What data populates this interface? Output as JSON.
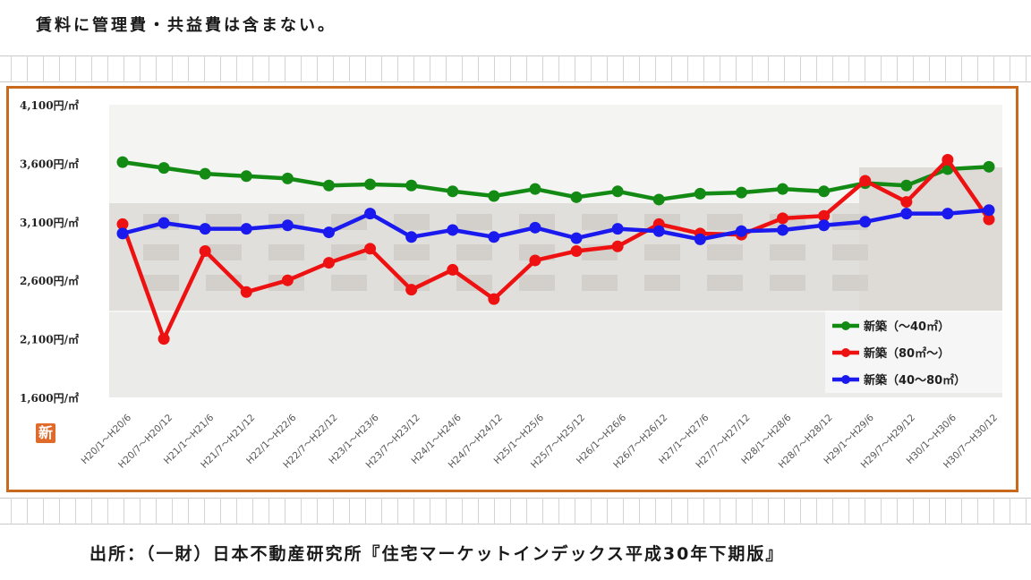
{
  "note": "賃料に管理費・共益費は含まない。",
  "source": "出所：（一財）日本不動産研究所『住宅マーケットインデックス平成30年下期版』",
  "logo_text": "新",
  "colors": {
    "frame": "#c8691e",
    "green": "#138a13",
    "red": "#ee1111",
    "blue": "#1a1aee"
  },
  "chart_data": {
    "type": "line",
    "title": "",
    "xlabel": "",
    "ylabel": "",
    "ylim": [
      1600,
      4100
    ],
    "yticks": [
      1600,
      2100,
      2600,
      3100,
      3600,
      4100
    ],
    "ytick_labels": [
      "1,600円/㎡",
      "2,100円/㎡",
      "2,600円/㎡",
      "3,100円/㎡",
      "3,600円/㎡",
      "4,100円/㎡"
    ],
    "legend_position": "bottom-right",
    "categories": [
      "H20/1～H20/6",
      "H20/7～H20/12",
      "H21/1～H21/6",
      "H21/7～H21/12",
      "H22/1～H22/6",
      "H22/7～H22/12",
      "H23/1～H23/6",
      "H23/7～H23/12",
      "H24/1～H24/6",
      "H24/7～H24/12",
      "H25/1～H25/6",
      "H25/7～H25/12",
      "H26/1～H26/6",
      "H26/7～H26/12",
      "H27/1～H27/6",
      "H27/7～H27/12",
      "H28/1～H28/6",
      "H28/7～H28/12",
      "H29/1～H29/6",
      "H29/7～H29/12",
      "H30/1～H30/6",
      "H30/7～H30/12"
    ],
    "series": [
      {
        "name": "新築（～40㎡）",
        "color": "#138a13",
        "values": [
          3610,
          3560,
          3510,
          3490,
          3470,
          3410,
          3420,
          3410,
          3360,
          3320,
          3380,
          3310,
          3360,
          3290,
          3340,
          3350,
          3380,
          3360,
          3430,
          3410,
          3550,
          3570
        ]
      },
      {
        "name": "新築（80㎡～）",
        "color": "#ee1111",
        "values": [
          3080,
          2100,
          2850,
          2500,
          2600,
          2750,
          2870,
          2520,
          2690,
          2440,
          2770,
          2850,
          2890,
          3080,
          3000,
          2990,
          3130,
          3150,
          3450,
          3270,
          3630,
          3120
        ]
      },
      {
        "name": "新築（40～80㎡）",
        "color": "#1a1aee",
        "values": [
          3000,
          3090,
          3040,
          3040,
          3070,
          3010,
          3170,
          2970,
          3030,
          2970,
          3050,
          2960,
          3040,
          3020,
          2950,
          3020,
          3030,
          3070,
          3100,
          3170,
          3170,
          3200
        ]
      }
    ]
  }
}
